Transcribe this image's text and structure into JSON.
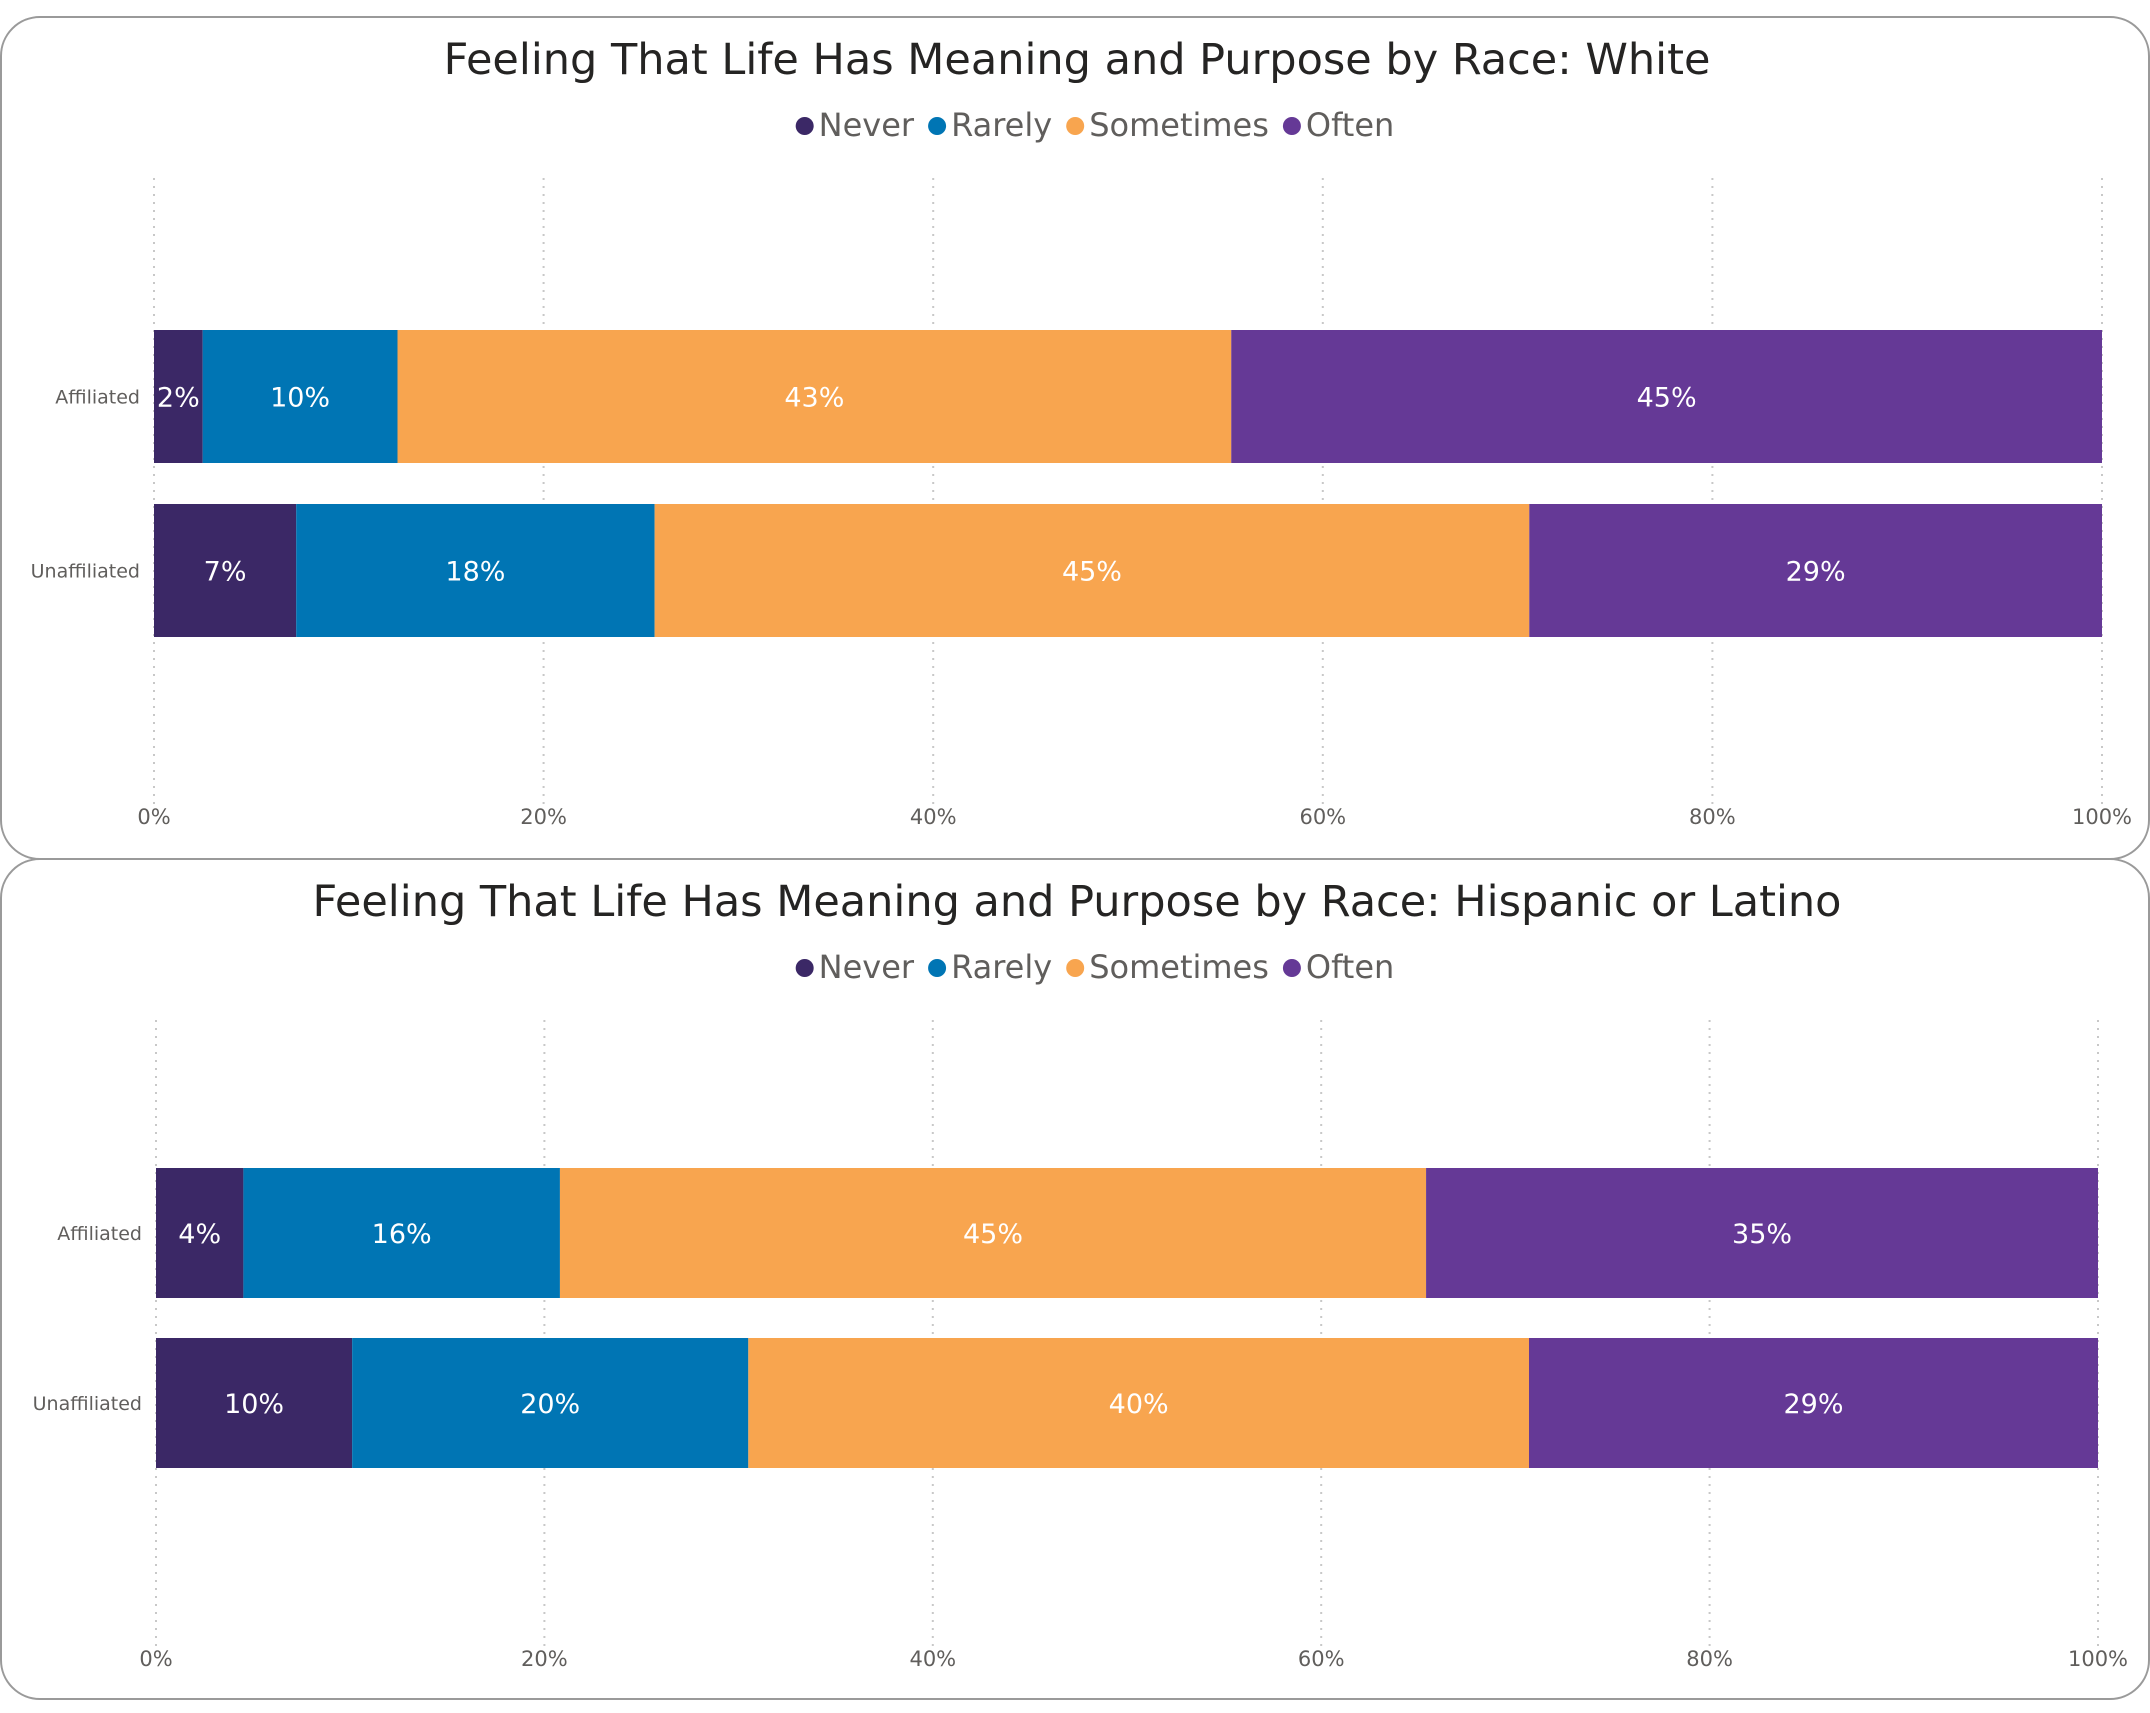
{
  "colors": {
    "Never": "#3b2866",
    "Rarely": "#0075b4",
    "Sometimes": "#f8a54f",
    "Often": "#653996"
  },
  "chart_data": [
    {
      "type": "bar",
      "orientation": "horizontal",
      "stacked": "100%",
      "title": "Feeling That Life Has Meaning and Purpose by Race: White",
      "legend": [
        "Never",
        "Rarely",
        "Sometimes",
        "Often"
      ],
      "legend_position": "top-center",
      "categories": [
        "Affiliated",
        "Unaffiliated"
      ],
      "series": [
        {
          "name": "Never",
          "values": [
            2.5,
            7.3
          ],
          "labels": [
            "2%",
            "7%"
          ]
        },
        {
          "name": "Rarely",
          "values": [
            10.0,
            18.4
          ],
          "labels": [
            "10%",
            "18%"
          ]
        },
        {
          "name": "Sometimes",
          "values": [
            42.8,
            44.9
          ],
          "labels": [
            "43%",
            "45%"
          ]
        },
        {
          "name": "Often",
          "values": [
            44.7,
            29.4
          ],
          "labels": [
            "45%",
            "29%"
          ]
        }
      ],
      "x_ticks": [
        "0%",
        "20%",
        "40%",
        "60%",
        "80%",
        "100%"
      ],
      "xlim": [
        0,
        100
      ],
      "grid": true
    },
    {
      "type": "bar",
      "orientation": "horizontal",
      "stacked": "100%",
      "title": "Feeling That Life Has Meaning and Purpose by Race: Hispanic or Latino",
      "legend": [
        "Never",
        "Rarely",
        "Sometimes",
        "Often"
      ],
      "legend_position": "top-center",
      "categories": [
        "Affiliated",
        "Unaffiliated"
      ],
      "series": [
        {
          "name": "Never",
          "values": [
            4.5,
            10.1
          ],
          "labels": [
            "4%",
            "10%"
          ]
        },
        {
          "name": "Rarely",
          "values": [
            16.3,
            20.4
          ],
          "labels": [
            "16%",
            "20%"
          ]
        },
        {
          "name": "Sometimes",
          "values": [
            44.6,
            40.2
          ],
          "labels": [
            "45%",
            "40%"
          ]
        },
        {
          "name": "Often",
          "values": [
            34.6,
            29.3
          ],
          "labels": [
            "35%",
            "29%"
          ]
        }
      ],
      "x_ticks": [
        "0%",
        "20%",
        "40%",
        "60%",
        "80%",
        "100%"
      ],
      "xlim": [
        0,
        100
      ],
      "grid": true
    }
  ]
}
